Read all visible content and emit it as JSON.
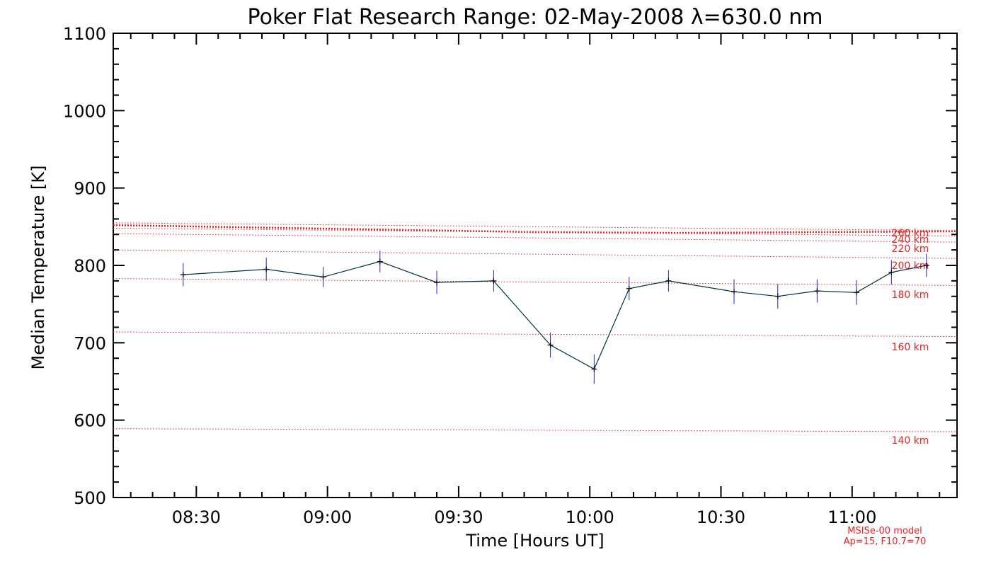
{
  "chart_data": {
    "type": "line",
    "title": "Poker Flat Research Range: 02-May-2008 λ=630.0 nm",
    "xlabel": "Time [Hours UT]",
    "ylabel": "Median Temperature [K]",
    "xlim": [
      "08:11",
      "11:24"
    ],
    "ylim": [
      500,
      1100
    ],
    "xticks": [
      "08:30",
      "09:00",
      "09:30",
      "10:00",
      "10:30",
      "11:00"
    ],
    "yticks": [
      500,
      600,
      700,
      800,
      900,
      1000,
      1100
    ],
    "grid": false,
    "series": [
      {
        "color": "#003040",
        "error_bar_color": "#2020dd",
        "points": [
          {
            "x": "08:27",
            "y": 788,
            "err": 15
          },
          {
            "x": "08:46",
            "y": 795,
            "err": 15
          },
          {
            "x": "08:59",
            "y": 785,
            "err": 13
          },
          {
            "x": "09:12",
            "y": 805,
            "err": 14
          },
          {
            "x": "09:25",
            "y": 778,
            "err": 15
          },
          {
            "x": "09:38",
            "y": 780,
            "err": 14
          },
          {
            "x": "09:51",
            "y": 697,
            "err": 16
          },
          {
            "x": "10:01",
            "y": 666,
            "err": 19
          },
          {
            "x": "10:09",
            "y": 770,
            "err": 15
          },
          {
            "x": "10:18",
            "y": 780,
            "err": 14
          },
          {
            "x": "10:33",
            "y": 766,
            "err": 16
          },
          {
            "x": "10:43",
            "y": 760,
            "err": 16
          },
          {
            "x": "10:52",
            "y": 767,
            "err": 15
          },
          {
            "x": "11:01",
            "y": 765,
            "err": 16
          },
          {
            "x": "11:09",
            "y": 791,
            "err": 16
          },
          {
            "x": "11:17",
            "y": 800,
            "err": 15
          }
        ]
      }
    ],
    "model_lines": {
      "color": "#ee2020",
      "style": "dotted",
      "lines": [
        {
          "label": "140 km",
          "y_start": 589,
          "y_end": 585
        },
        {
          "label": "160 km",
          "y_start": 714,
          "y_end": 708
        },
        {
          "label": "180 km",
          "y_start": 783,
          "y_end": 774
        },
        {
          "label": "200 km",
          "y_start": 820,
          "y_end": 809
        },
        {
          "label": "220 km",
          "y_start": 841,
          "y_end": 830
        },
        {
          "label": "240 km",
          "y_start": 848,
          "y_end": 838
        },
        {
          "label": "260 km",
          "y_start": 855,
          "y_end": 845
        }
      ],
      "highlight": {
        "color": "#ee2020",
        "y_values": [
          852,
          849,
          846,
          843,
          842,
          843,
          844
        ]
      }
    },
    "model_note": [
      "MSISe-00 model",
      "Ap=15, F10.7=70"
    ]
  }
}
